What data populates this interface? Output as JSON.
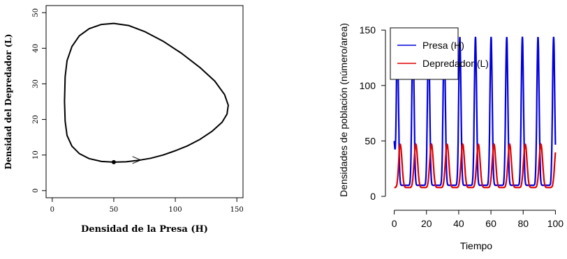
{
  "chart_data": [
    {
      "type": "line",
      "title": "",
      "xlabel": "Densidad de la Presa (H)",
      "ylabel": "Densidad del Depredador (L)",
      "xlim": [
        -5,
        155
      ],
      "ylim": [
        -2,
        52
      ],
      "x_ticks": [
        0,
        50,
        100,
        150
      ],
      "y_ticks": [
        0,
        10,
        20,
        30,
        40,
        50
      ],
      "x_tick_labels": [
        "0",
        "50",
        "100",
        "150"
      ],
      "y_tick_labels": [
        "0",
        "10",
        "20",
        "30",
        "40",
        "50"
      ],
      "grid": false,
      "series": [
        {
          "color": "#000000",
          "x": [
            50,
            60,
            70,
            80,
            90,
            100,
            110,
            120,
            130,
            138,
            142,
            143,
            140,
            132,
            120,
            105,
            90,
            75,
            62,
            50,
            40,
            30,
            22,
            16,
            12,
            10.5,
            10,
            10.5,
            12,
            16,
            22,
            30,
            40,
            50
          ],
          "y": [
            8,
            8.1,
            8.5,
            9.1,
            10,
            11.2,
            12.6,
            14.4,
            16.7,
            19.2,
            21.5,
            24,
            27,
            30.8,
            34.6,
            38.6,
            42,
            44.7,
            46.4,
            47,
            46.7,
            45.5,
            43.5,
            40.5,
            36.5,
            32,
            25,
            19.5,
            15.5,
            12.5,
            10.4,
            9,
            8.2,
            8
          ]
        }
      ],
      "start_point": {
        "x": 50,
        "y": 8
      },
      "direction": "clockwise"
    },
    {
      "type": "line",
      "title": "",
      "xlabel": "Tiempo",
      "ylabel": "Densidades de población (número/area)",
      "xlim": [
        -2,
        102
      ],
      "ylim": [
        -5,
        152
      ],
      "x_ticks": [
        0,
        20,
        40,
        60,
        80,
        100
      ],
      "y_ticks": [
        0,
        50,
        100,
        150
      ],
      "x_tick_labels": [
        "0",
        "20",
        "40",
        "60",
        "80",
        "100"
      ],
      "y_tick_labels": [
        "0",
        "50",
        "100",
        "150"
      ],
      "grid": false,
      "legend_position": "top-left",
      "period": 9.7,
      "series": [
        {
          "name": "Presa (H)",
          "color": "#0000dd",
          "initial": 50,
          "min": 10,
          "max": 144,
          "first_peak_at": 1.9
        },
        {
          "name": "Depredador (L)",
          "color": "#e00000",
          "initial": 8,
          "min": 8,
          "max": 47,
          "first_peak_at": 3.7
        }
      ]
    }
  ]
}
